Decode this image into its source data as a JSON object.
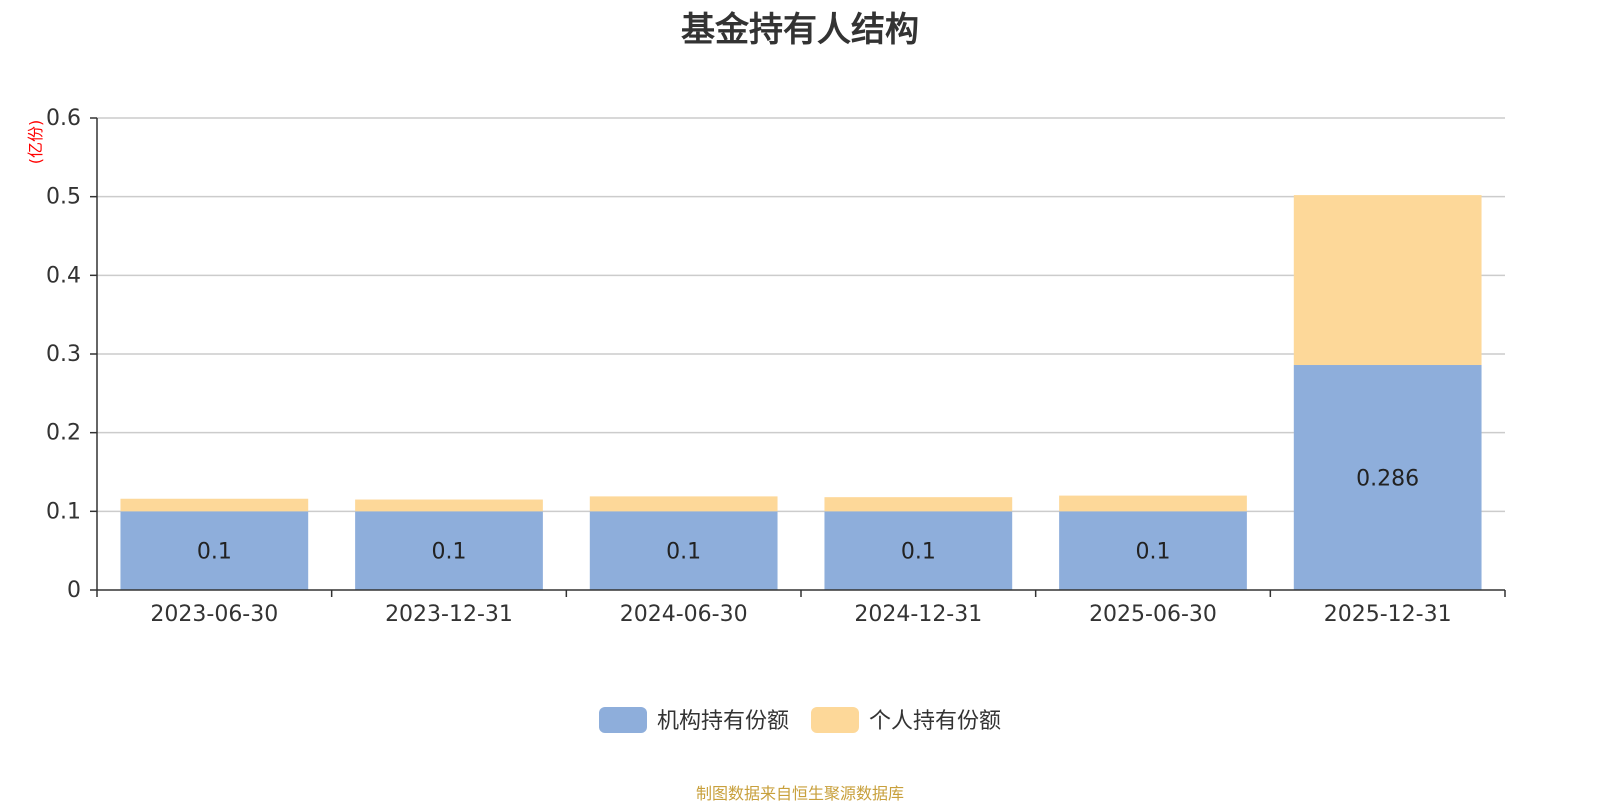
{
  "chart_data": {
    "type": "bar",
    "stacked": true,
    "title": "基金持有人结构",
    "ylabel": "(亿份)",
    "xlabel": "",
    "categories": [
      "2023-06-30",
      "2023-12-31",
      "2024-06-30",
      "2024-12-31",
      "2025-06-30",
      "2025-12-31"
    ],
    "ylim": [
      0,
      0.6
    ],
    "yticks": [
      "0",
      "0.1",
      "0.2",
      "0.3",
      "0.4",
      "0.5",
      "0.6"
    ],
    "grid": true,
    "legend_position": "bottom",
    "series": [
      {
        "name": "机构持有份额",
        "color": "#8eaedb",
        "values": [
          0.1,
          0.1,
          0.1,
          0.1,
          0.1,
          0.286
        ],
        "labels": [
          "0.1",
          "0.1",
          "0.1",
          "0.1",
          "0.1",
          "0.286"
        ]
      },
      {
        "name": "个人持有份额",
        "color": "#fdd899",
        "values": [
          0.016,
          0.015,
          0.019,
          0.018,
          0.02,
          0.216
        ]
      }
    ],
    "source": "制图数据来自恒生聚源数据库"
  }
}
